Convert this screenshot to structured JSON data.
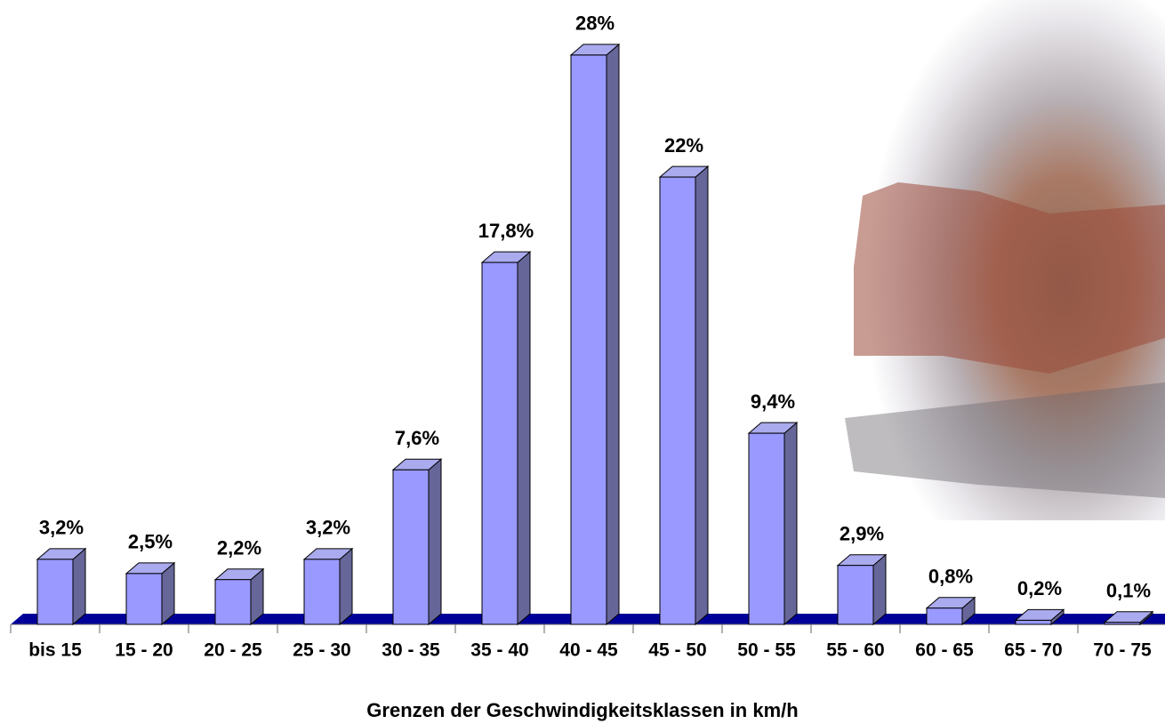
{
  "chart_data": {
    "type": "bar3d",
    "x_label": "Grenzen der Geschwindigkeitsklassen in km/h",
    "categories": [
      "bis 15",
      "15 - 20",
      "20 - 25",
      "25 - 30",
      "30 - 35",
      "35 - 40",
      "40 - 45",
      "45 - 50",
      "50 - 55",
      "55 - 60",
      "60 - 65",
      "65 - 70",
      "70 - 75"
    ],
    "values": [
      3.2,
      2.5,
      2.2,
      3.2,
      7.6,
      17.8,
      28,
      22,
      9.4,
      2.9,
      0.8,
      0.2,
      0.1
    ],
    "value_labels": [
      "3,2%",
      "2,5%",
      "2,2%",
      "3,2%",
      "7,6%",
      "17,8%",
      "28%",
      "22%",
      "9,4%",
      "2,9%",
      "0,8%",
      "0,2%",
      "0,1%"
    ],
    "color": "#9999ff"
  }
}
